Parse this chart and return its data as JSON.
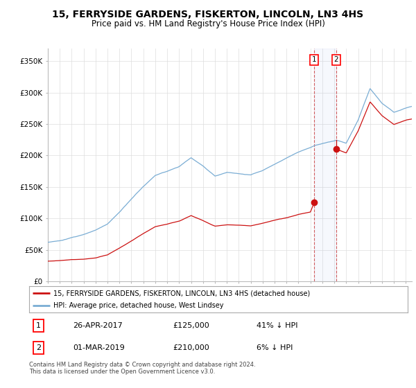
{
  "title": "15, FERRYSIDE GARDENS, FISKERTON, LINCOLN, LN3 4HS",
  "subtitle": "Price paid vs. HM Land Registry's House Price Index (HPI)",
  "title_fontsize": 10,
  "subtitle_fontsize": 8.5,
  "ylabel_ticks": [
    "£0",
    "£50K",
    "£100K",
    "£150K",
    "£200K",
    "£250K",
    "£300K",
    "£350K"
  ],
  "ytick_values": [
    0,
    50000,
    100000,
    150000,
    200000,
    250000,
    300000,
    350000
  ],
  "ylim": [
    0,
    370000
  ],
  "xlim_start": 1995.0,
  "xlim_end": 2025.5,
  "hpi_color": "#7aadd4",
  "price_color": "#cc1111",
  "t1_date": 2017.32,
  "t1_price": 125000,
  "t2_date": 2019.17,
  "t2_price": 210000,
  "legend_line1": "15, FERRYSIDE GARDENS, FISKERTON, LINCOLN, LN3 4HS (detached house)",
  "legend_line2": "HPI: Average price, detached house, West Lindsey",
  "table_row1": [
    "1",
    "26-APR-2017",
    "£125,000",
    "41% ↓ HPI"
  ],
  "table_row2": [
    "2",
    "01-MAR-2019",
    "£210,000",
    "6% ↓ HPI"
  ],
  "footer": "Contains HM Land Registry data © Crown copyright and database right 2024.\nThis data is licensed under the Open Government Licence v3.0.",
  "background_color": "#ffffff",
  "grid_color": "#dddddd",
  "hpi_anchors_x": [
    1995,
    1996,
    1997,
    1998,
    1999,
    2000,
    2001,
    2002,
    2003,
    2004,
    2005,
    2006,
    2007,
    2008,
    2009,
    2010,
    2011,
    2012,
    2013,
    2014,
    2015,
    2016,
    2017,
    2017.32,
    2018,
    2019,
    2019.17,
    2020,
    2021,
    2022,
    2023,
    2024,
    2025,
    2025.5
  ],
  "hpi_anchors_y": [
    62000,
    65000,
    70000,
    75000,
    82000,
    92000,
    110000,
    130000,
    150000,
    168000,
    175000,
    182000,
    196000,
    183000,
    167000,
    173000,
    170000,
    168000,
    175000,
    185000,
    195000,
    205000,
    212000,
    215000,
    218000,
    222000,
    223000,
    218000,
    255000,
    305000,
    282000,
    268000,
    275000,
    278000
  ],
  "red_anchors_x": [
    1995,
    1996,
    1997,
    1998,
    1999,
    2000,
    2001,
    2002,
    2003,
    2004,
    2005,
    2006,
    2007,
    2008,
    2009,
    2010,
    2011,
    2012,
    2013,
    2014,
    2015,
    2016,
    2017,
    2017.32
  ],
  "red_anchors_y": [
    32000,
    33000,
    34500,
    35000,
    37000,
    42000,
    53000,
    64000,
    76000,
    87000,
    91000,
    96000,
    105000,
    97000,
    88000,
    90000,
    89000,
    88000,
    92000,
    97000,
    101000,
    106000,
    110000,
    125000
  ],
  "red2_anchors_x": [
    2019.17,
    2020,
    2021,
    2022,
    2023,
    2024,
    2025,
    2025.5
  ],
  "red2_anchors_y": [
    210000,
    204000,
    239000,
    285000,
    263000,
    249000,
    256000,
    258000
  ]
}
